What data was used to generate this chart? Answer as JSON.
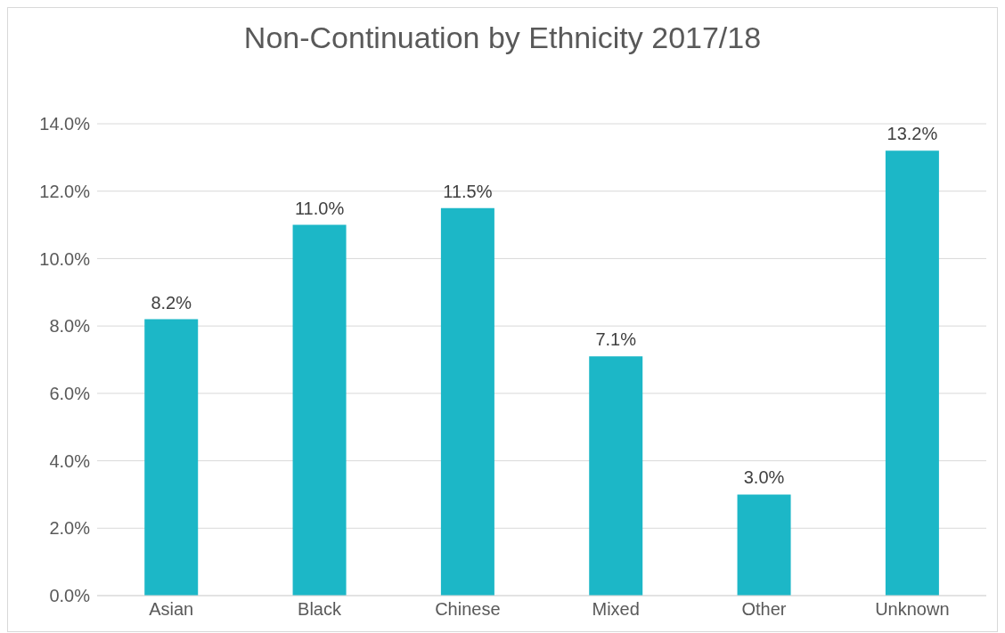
{
  "chart_data": {
    "type": "bar",
    "title": "Non-Continuation by Ethnicity 2017/18",
    "categories": [
      "Asian",
      "Black",
      "Chinese",
      "Mixed",
      "Other",
      "Unknown"
    ],
    "values": [
      8.2,
      11.0,
      11.5,
      7.1,
      3.0,
      13.2
    ],
    "value_labels": [
      "8.2%",
      "11.0%",
      "11.5%",
      "7.1%",
      "3.0%",
      "13.2%"
    ],
    "color": "#1cb7c7",
    "ylim": [
      0,
      14
    ],
    "yticks": [
      {
        "value": 0,
        "label": "0.0%"
      },
      {
        "value": 2,
        "label": "2.0%"
      },
      {
        "value": 4,
        "label": "4.0%"
      },
      {
        "value": 6,
        "label": "6.0%"
      },
      {
        "value": 8,
        "label": "8.0%"
      },
      {
        "value": 10,
        "label": "10.0%"
      },
      {
        "value": 12,
        "label": "12.0%"
      },
      {
        "value": 14,
        "label": "14.0%"
      }
    ],
    "grid": "y"
  }
}
